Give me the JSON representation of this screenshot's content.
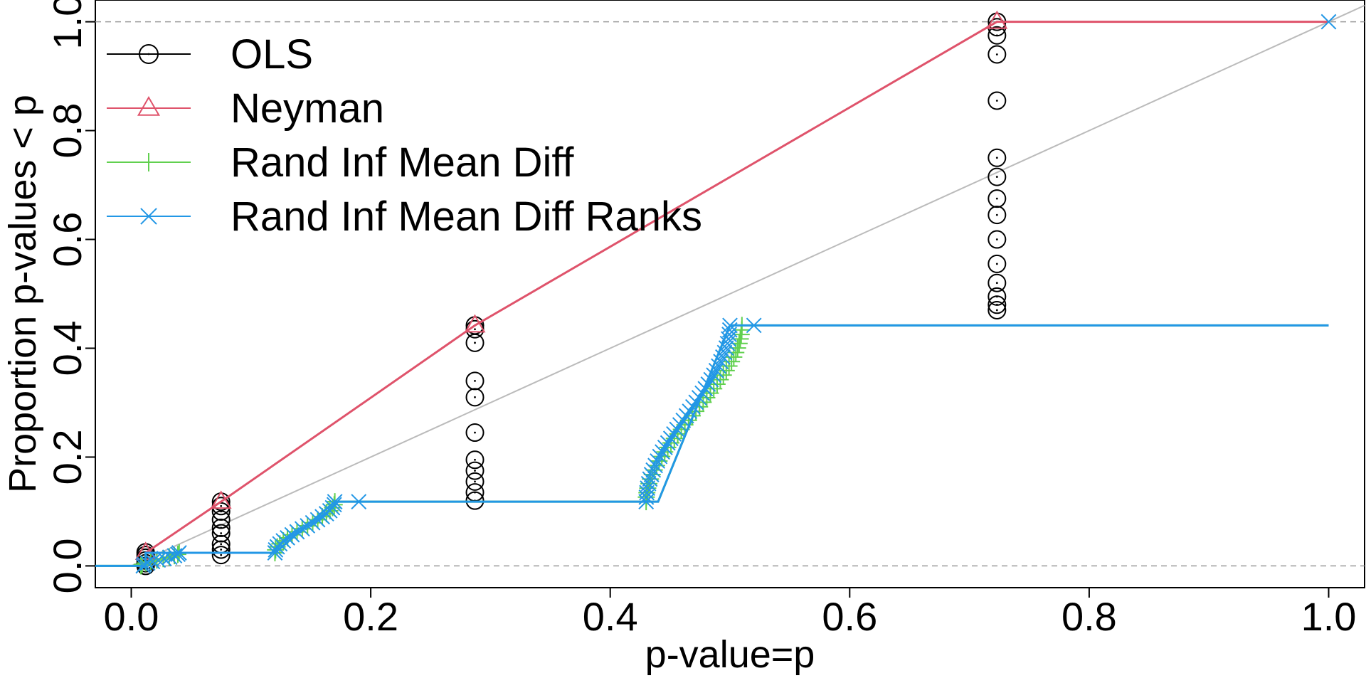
{
  "chart_data": {
    "type": "line",
    "title": "",
    "xlabel": "p-value=p",
    "ylabel": "Proportion p-values < p",
    "xlim": [
      -0.03,
      1.03
    ],
    "ylim": [
      -0.04,
      1.04
    ],
    "x_ticks": [
      "0.0",
      "0.2",
      "0.4",
      "0.6",
      "0.8",
      "1.0"
    ],
    "y_ticks": [
      "0.0",
      "0.2",
      "0.4",
      "0.6",
      "0.8",
      "1.0"
    ],
    "legend_position": "top-left",
    "reference_lines": {
      "horizontal_dashed": [
        0,
        1
      ],
      "diagonal": "y = x"
    },
    "series": [
      {
        "name": "OLS",
        "color": "#000000",
        "marker": "circle",
        "points": [
          [
            0.012,
            0.0
          ],
          [
            0.012,
            0.005
          ],
          [
            0.012,
            0.01
          ],
          [
            0.012,
            0.015
          ],
          [
            0.012,
            0.02
          ],
          [
            0.012,
            0.025
          ],
          [
            0.075,
            0.02
          ],
          [
            0.075,
            0.03
          ],
          [
            0.075,
            0.04
          ],
          [
            0.075,
            0.06
          ],
          [
            0.075,
            0.07
          ],
          [
            0.075,
            0.085
          ],
          [
            0.075,
            0.1
          ],
          [
            0.075,
            0.11
          ],
          [
            0.075,
            0.118
          ],
          [
            0.287,
            0.12
          ],
          [
            0.287,
            0.135
          ],
          [
            0.287,
            0.155
          ],
          [
            0.287,
            0.175
          ],
          [
            0.287,
            0.195
          ],
          [
            0.287,
            0.245
          ],
          [
            0.287,
            0.31
          ],
          [
            0.287,
            0.34
          ],
          [
            0.287,
            0.41
          ],
          [
            0.287,
            0.435
          ],
          [
            0.287,
            0.442
          ],
          [
            0.723,
            0.47
          ],
          [
            0.723,
            0.48
          ],
          [
            0.723,
            0.495
          ],
          [
            0.723,
            0.52
          ],
          [
            0.723,
            0.555
          ],
          [
            0.723,
            0.6
          ],
          [
            0.723,
            0.645
          ],
          [
            0.723,
            0.675
          ],
          [
            0.723,
            0.715
          ],
          [
            0.723,
            0.75
          ],
          [
            0.723,
            0.855
          ],
          [
            0.723,
            0.94
          ],
          [
            0.723,
            0.975
          ],
          [
            0.723,
            0.99
          ],
          [
            0.723,
            1.0
          ]
        ]
      },
      {
        "name": "Neyman",
        "color": "#DF536B",
        "marker": "triangle",
        "step": [
          [
            0.012,
            0.024
          ],
          [
            0.075,
            0.118
          ],
          [
            0.287,
            0.442
          ],
          [
            0.723,
            1.0
          ],
          [
            1.0,
            1.0
          ]
        ],
        "points": [
          [
            0.012,
            0.024
          ],
          [
            0.075,
            0.118
          ],
          [
            0.287,
            0.442
          ],
          [
            0.723,
            1.0
          ]
        ]
      },
      {
        "name": "Rand Inf Mean Diff",
        "color": "#61D04F",
        "marker": "plus",
        "step": [
          [
            -0.03,
            0.0
          ],
          [
            0.012,
            0.0
          ],
          [
            0.012,
            0.024
          ],
          [
            0.12,
            0.024
          ],
          [
            0.17,
            0.118
          ],
          [
            0.44,
            0.118
          ],
          [
            0.5,
            0.442
          ],
          [
            1.0,
            0.442
          ]
        ],
        "clusters": [
          {
            "x": [
              0.008,
              0.04
            ],
            "y": [
              0.0,
              0.024
            ],
            "n": 10
          },
          {
            "x": [
              0.12,
              0.17
            ],
            "y": [
              0.024,
              0.118
            ],
            "n": 18
          },
          {
            "x": [
              0.43,
              0.51
            ],
            "y": [
              0.118,
              0.442
            ],
            "n": 40
          }
        ]
      },
      {
        "name": "Rand Inf Mean Diff Ranks",
        "color": "#2297E6",
        "marker": "x",
        "step": [
          [
            -0.03,
            0.0
          ],
          [
            0.012,
            0.0
          ],
          [
            0.012,
            0.024
          ],
          [
            0.12,
            0.024
          ],
          [
            0.17,
            0.118
          ],
          [
            0.44,
            0.118
          ],
          [
            0.5,
            0.442
          ],
          [
            1.0,
            0.442
          ]
        ],
        "clusters": [
          {
            "x": [
              0.01,
              0.04
            ],
            "y": [
              0.0,
              0.024
            ],
            "n": 10
          },
          {
            "x": [
              0.12,
              0.17
            ],
            "y": [
              0.024,
              0.118
            ],
            "n": 18
          },
          {
            "x": [
              0.43,
              0.5
            ],
            "y": [
              0.118,
              0.442
            ],
            "n": 40
          }
        ],
        "points": [
          [
            0.19,
            0.118
          ],
          [
            0.52,
            0.442
          ],
          [
            1.0,
            1.0
          ]
        ]
      }
    ]
  }
}
